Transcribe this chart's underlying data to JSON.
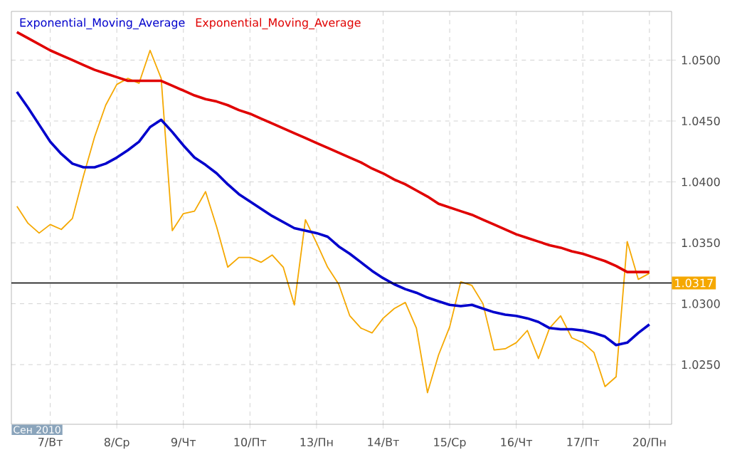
{
  "chart_data": {
    "type": "line",
    "categories": [
      null,
      null,
      null,
      "7/Вт",
      null,
      null,
      null,
      null,
      null,
      "8/Ср",
      null,
      null,
      null,
      null,
      null,
      "9/Чт",
      null,
      null,
      null,
      null,
      null,
      "10/Пт",
      null,
      null,
      null,
      null,
      null,
      "13/Пн",
      null,
      null,
      null,
      null,
      null,
      "14/Вт",
      null,
      null,
      null,
      null,
      null,
      "15/Ср",
      null,
      null,
      null,
      null,
      null,
      "16/Чт",
      null,
      null,
      null,
      null,
      null,
      "17/Пт",
      null,
      null,
      null,
      null,
      null,
      "20/Пн"
    ],
    "series": [
      {
        "color": "#f5a800",
        "values": [
          1.038,
          1.0366,
          1.0358,
          1.0365,
          1.0361,
          1.037,
          1.0405,
          1.0437,
          1.0463,
          1.048,
          1.0485,
          1.0481,
          1.0508,
          1.0485,
          1.036,
          1.0374,
          1.0376,
          1.0392,
          1.0363,
          1.033,
          1.0338,
          1.0338,
          1.0334,
          1.034,
          1.033,
          1.0299,
          1.0369,
          1.035,
          1.033,
          1.0316,
          1.029,
          1.028,
          1.0276,
          1.0288,
          1.0296,
          1.0301,
          1.028,
          1.0227,
          1.0258,
          1.0281,
          1.0318,
          1.0315,
          1.03,
          1.0262,
          1.0263,
          1.0268,
          1.0278,
          1.0255,
          1.028,
          1.029,
          1.0272,
          1.0268,
          1.026,
          1.0232,
          1.024,
          1.0351,
          1.032,
          1.0325
        ]
      },
      {
        "name": "Exponential_Moving_Average",
        "color": "#0000cc",
        "values": [
          1.0474,
          1.0461,
          1.0447,
          1.0433,
          1.0423,
          1.0415,
          1.0412,
          1.0412,
          1.0415,
          1.042,
          1.0426,
          1.0433,
          1.0445,
          1.0451,
          1.0441,
          1.043,
          1.042,
          1.0414,
          1.0407,
          1.0398,
          1.039,
          1.0384,
          1.0378,
          1.0372,
          1.0367,
          1.0362,
          1.036,
          1.0358,
          1.0355,
          1.0347,
          1.0341,
          1.0334,
          1.0327,
          1.0321,
          1.0316,
          1.0312,
          1.0309,
          1.0305,
          1.0302,
          1.0299,
          1.0298,
          1.0299,
          1.0296,
          1.0293,
          1.0291,
          1.029,
          1.0288,
          1.0285,
          1.028,
          1.0279,
          1.0279,
          1.0278,
          1.0276,
          1.0273,
          1.0266,
          1.0268,
          1.0276,
          1.0283
        ]
      },
      {
        "name": "Exponential_Moving_Average",
        "color": "#e00000",
        "values": [
          1.0523,
          1.0518,
          1.0513,
          1.0508,
          1.0504,
          1.05,
          1.0496,
          1.0492,
          1.0489,
          1.0486,
          1.0483,
          1.0483,
          1.0483,
          1.0483,
          1.0479,
          1.0475,
          1.0471,
          1.0468,
          1.0466,
          1.0463,
          1.0459,
          1.0456,
          1.0452,
          1.0448,
          1.0444,
          1.044,
          1.0436,
          1.0432,
          1.0428,
          1.0424,
          1.042,
          1.0416,
          1.0411,
          1.0407,
          1.0402,
          1.0398,
          1.0393,
          1.0388,
          1.0382,
          1.0379,
          1.0376,
          1.0373,
          1.0369,
          1.0365,
          1.0361,
          1.0357,
          1.0354,
          1.0351,
          1.0348,
          1.0346,
          1.0343,
          1.0341,
          1.0338,
          1.0335,
          1.0331,
          1.0326,
          1.0326,
          1.0326
        ]
      }
    ],
    "ylim": [
      1.0201,
      1.054
    ],
    "yticks": [
      {
        "value": 1.025,
        "label": "1.0250"
      },
      {
        "value": 1.03,
        "label": "1.0300"
      },
      {
        "value": 1.035,
        "label": "1.0350"
      },
      {
        "value": 1.04,
        "label": "1.0400"
      },
      {
        "value": 1.045,
        "label": "1.0450"
      },
      {
        "value": 1.05,
        "label": "1.0500"
      }
    ],
    "ref_lines": [
      {
        "axis": "y",
        "value": 1.0317,
        "label": "1.0317",
        "color": "#000000"
      }
    ],
    "annotations": [
      "Сен 2010"
    ],
    "grid": true,
    "legend": "top left",
    "marker": "none",
    "line_style": "solid"
  }
}
